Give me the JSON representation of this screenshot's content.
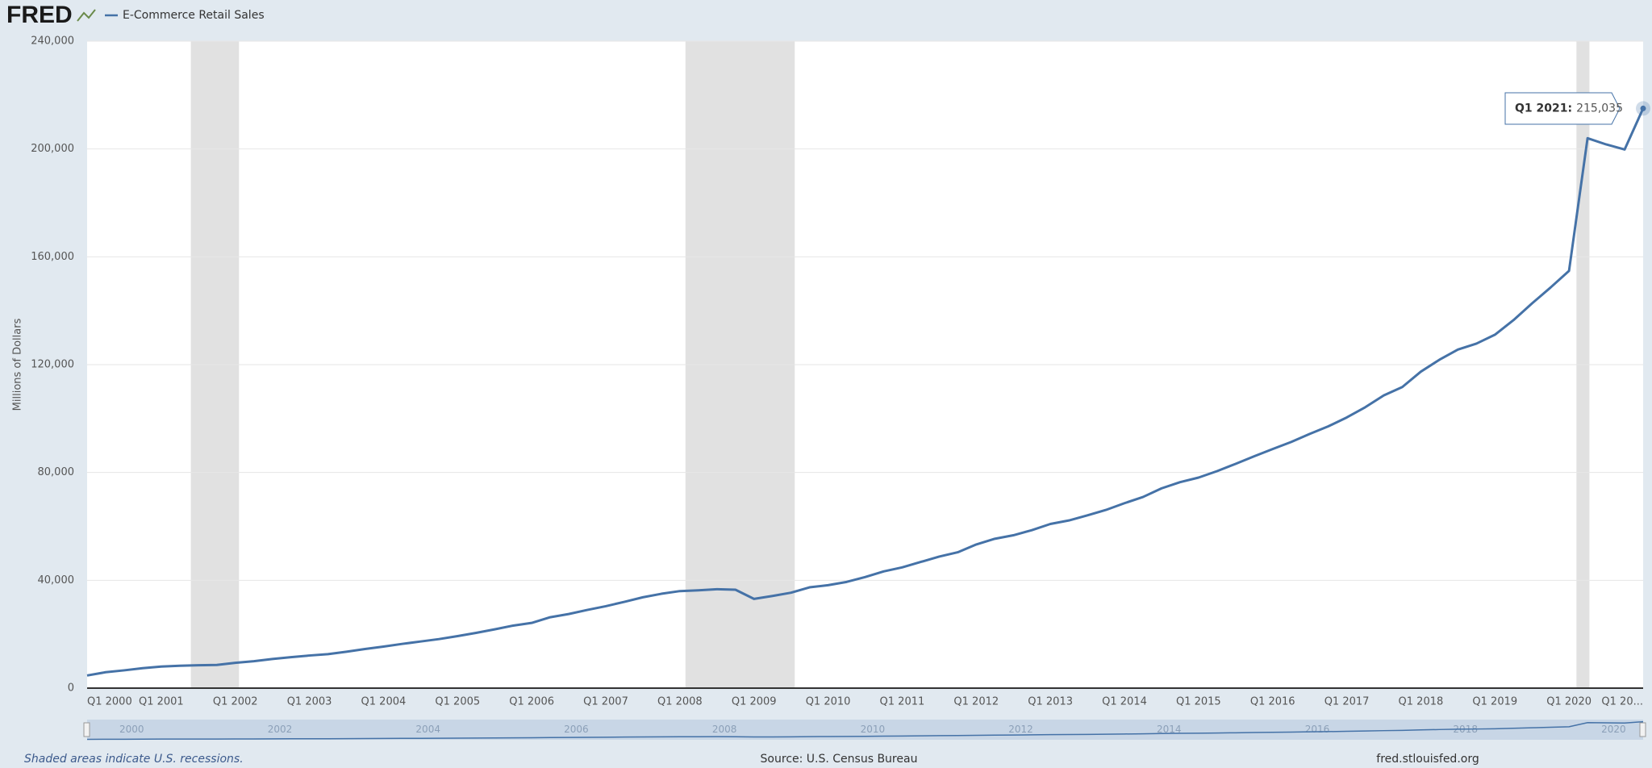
{
  "header": {
    "logo": "FRED",
    "legend": "E-Commerce Retail Sales"
  },
  "chart_data": {
    "type": "line",
    "ylabel": "Millions of Dollars",
    "categories": [
      "Q1 2000",
      null,
      null,
      null,
      "Q1 2001",
      null,
      null,
      null,
      "Q1 2002",
      null,
      null,
      null,
      "Q1 2003",
      null,
      null,
      null,
      "Q1 2004",
      null,
      null,
      null,
      "Q1 2005",
      null,
      null,
      null,
      "Q1 2006",
      null,
      null,
      null,
      "Q1 2007",
      null,
      null,
      null,
      "Q1 2008",
      null,
      null,
      null,
      "Q1 2009",
      null,
      null,
      null,
      "Q1 2010",
      null,
      null,
      null,
      "Q1 2011",
      null,
      null,
      null,
      "Q1 2012",
      null,
      null,
      null,
      "Q1 2013",
      null,
      null,
      null,
      "Q1 2014",
      null,
      null,
      null,
      "Q1 2015",
      null,
      null,
      null,
      "Q1 2016",
      null,
      null,
      null,
      "Q1 2017",
      null,
      null,
      null,
      "Q1 2018",
      null,
      null,
      null,
      "Q1 2019",
      null,
      null,
      null,
      "Q1 2020",
      null,
      null,
      null,
      "Q1 20..."
    ],
    "series": [
      {
        "name": "E-Commerce Retail Sales",
        "color": "#4572a7",
        "values": [
          4700,
          5900,
          6600,
          7400,
          8000,
          8300,
          8500,
          8600,
          9400,
          10000,
          10800,
          11500,
          12100,
          12600,
          13500,
          14500,
          15400,
          16400,
          17300,
          18200,
          19300,
          20500,
          21800,
          23200,
          24200,
          26300,
          27500,
          29000,
          30400,
          32000,
          33700,
          35000,
          36000,
          36300,
          36700,
          36500,
          33100,
          34200,
          35400,
          37400,
          38200,
          39400,
          41200,
          43300,
          44800,
          46800,
          48800,
          50400,
          53300,
          55400,
          56700,
          58600,
          60900,
          62200,
          64100,
          66100,
          68600,
          70900,
          74100,
          76400,
          78100,
          80500,
          83200,
          86000,
          88700,
          91300,
          94300,
          97100,
          100400,
          104200,
          108600,
          111700,
          117400,
          121800,
          125600,
          127800,
          131100,
          136500,
          142700,
          148600,
          154800,
          204000,
          201700,
          199800,
          215035
        ]
      }
    ],
    "ylim": [
      0,
      240000
    ],
    "yticks": [
      0,
      {
        "value": 40000,
        "label": "40,000"
      },
      {
        "value": 80000,
        "label": "80,000"
      },
      {
        "value": 120000,
        "label": "120,000"
      },
      {
        "value": 160000,
        "label": "160,000"
      },
      {
        "value": 200000,
        "label": "200,000"
      },
      {
        "value": 240000,
        "label": "240,000"
      }
    ],
    "grid": true,
    "recessions": [
      [
        5.6,
        8.2
      ],
      [
        32.3,
        38.2
      ],
      [
        80.4,
        81.1
      ]
    ],
    "recession_color": "#e1e1e1",
    "tooltip": {
      "label": "Q1 2021:",
      "value": "215,035"
    },
    "navigator_labels": [
      2000,
      2002,
      2004,
      2006,
      2008,
      2010,
      2012,
      2014,
      2016,
      2018,
      2020
    ]
  },
  "footer": {
    "note": "Shaded areas indicate U.S. recessions.",
    "source": "Source: U.S. Census Bureau",
    "site": "fred.stlouisfed.org"
  }
}
